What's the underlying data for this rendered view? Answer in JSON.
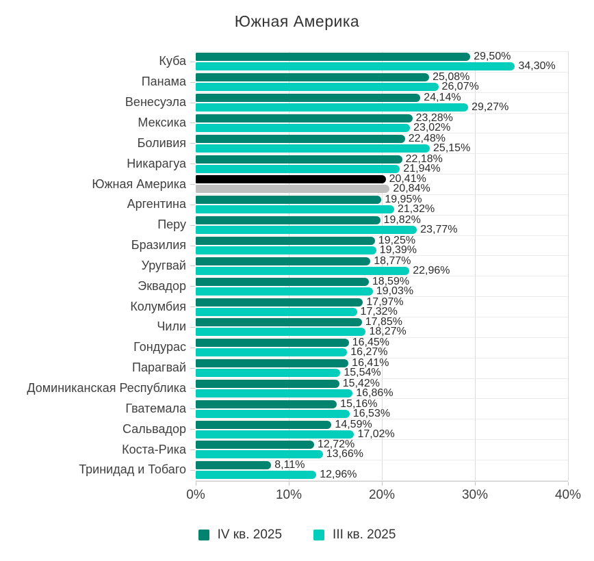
{
  "title": "Южная Америка",
  "colors": {
    "q4_bar": "#00846F",
    "q3_bar": "#03CEBC",
    "region_q4_bar": "#000000",
    "region_q3_bar": "#BFBFBF",
    "title_text": "#333333",
    "label_text": "#404040",
    "value_text": "#2B2B2B",
    "gridline": "#DCDCDC",
    "axis_line": "#C9C9C9",
    "row_separator": "#ECECEC",
    "background": "#FFFFFF"
  },
  "chart_data": {
    "type": "bar",
    "orientation": "horizontal",
    "title": "Южная Америка",
    "xlabel": "",
    "ylabel": "",
    "xlim": [
      0,
      40
    ],
    "x_ticks": [
      {
        "value": 0,
        "label": "0%"
      },
      {
        "value": 10,
        "label": "10%"
      },
      {
        "value": 20,
        "label": "20%"
      },
      {
        "value": 30,
        "label": "30%"
      },
      {
        "value": 40,
        "label": "40%"
      }
    ],
    "grid": "vertical",
    "legend_position": "bottom",
    "highlight_category": "Южная Америка",
    "categories": [
      "Куба",
      "Панама",
      "Венесуэла",
      "Мексика",
      "Боливия",
      "Никарагуа",
      "Южная Америка",
      "Аргентина",
      "Перу",
      "Бразилия",
      "Уругвай",
      "Эквадор",
      "Колумбия",
      "Чили",
      "Гондурас",
      "Парагвай",
      "Доминиканская Республика",
      "Гватемала",
      "Сальвадор",
      "Коста-Рика",
      "Тринидад и Тобаго"
    ],
    "series": [
      {
        "name": "IV кв. 2025",
        "color": "#00846F",
        "highlight_color": "#000000",
        "values": [
          29.5,
          25.08,
          24.14,
          23.28,
          22.48,
          22.18,
          20.41,
          19.95,
          19.82,
          19.25,
          18.77,
          18.59,
          17.97,
          17.85,
          16.45,
          16.41,
          15.42,
          15.16,
          14.59,
          12.72,
          8.11
        ],
        "labels": [
          "29,50%",
          "25,08%",
          "24,14%",
          "23,28%",
          "22,48%",
          "22,18%",
          "20,41%",
          "19,95%",
          "19,82%",
          "19,25%",
          "18,77%",
          "18,59%",
          "17,97%",
          "17,85%",
          "16,45%",
          "16,41%",
          "15,42%",
          "15,16%",
          "14,59%",
          "12,72%",
          "8,11%"
        ]
      },
      {
        "name": "III кв. 2025",
        "color": "#03CEBC",
        "highlight_color": "#BFBFBF",
        "values": [
          34.3,
          26.07,
          29.27,
          23.02,
          25.15,
          21.94,
          20.84,
          21.32,
          23.77,
          19.39,
          22.96,
          19.03,
          17.32,
          18.27,
          16.27,
          15.54,
          16.86,
          16.53,
          17.02,
          13.66,
          12.96
        ],
        "labels": [
          "34,30%",
          "26,07%",
          "29,27%",
          "23,02%",
          "25,15%",
          "21,94%",
          "20,84%",
          "21,32%",
          "23,77%",
          "19,39%",
          "22,96%",
          "19,03%",
          "17,32%",
          "18,27%",
          "16,27%",
          "15,54%",
          "16,86%",
          "16,53%",
          "17,02%",
          "13,66%",
          "12,96%"
        ]
      }
    ]
  },
  "legend": [
    {
      "label": "IV кв. 2025",
      "color": "#00846F"
    },
    {
      "label": "III кв. 2025",
      "color": "#03CEBC"
    }
  ]
}
